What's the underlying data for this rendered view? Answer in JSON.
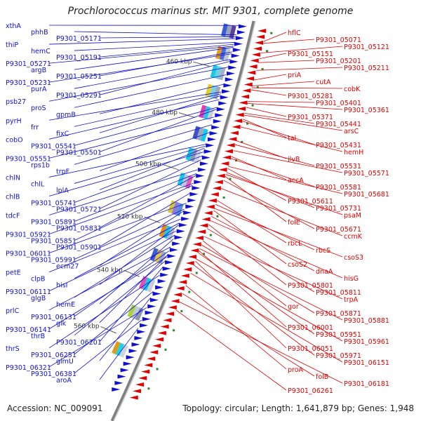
{
  "title": "Prochlorococcus marinus str. MIT 9301, complete genome",
  "accession": "Accession: NC_009091",
  "topology": "Topology: circular; Length: 1,641,879 bp; Genes: 1,948",
  "colors": {
    "forward": "#1010d0",
    "reverse": "#e00000",
    "backbone": "#808080",
    "ticks": "#2a8a2a"
  },
  "ticks": [
    {
      "label": "460 kbp",
      "t": 0.14
    },
    {
      "label": "480 kbp",
      "t": 0.275
    },
    {
      "label": "500 kbp",
      "t": 0.41
    },
    {
      "label": "520 kbp",
      "t": 0.545
    },
    {
      "label": "540 kbp",
      "t": 0.68
    },
    {
      "label": "560 kbp",
      "t": 0.82
    }
  ],
  "left_labels": [
    {
      "text": "xthA",
      "t": 0.02
    },
    {
      "text": "phhB",
      "t": 0.045
    },
    {
      "text": "P9301_05171",
      "t": 0.05
    },
    {
      "text": "thiP",
      "t": 0.055
    },
    {
      "text": "hemC",
      "t": 0.065
    },
    {
      "text": "P9301_05191",
      "t": 0.07
    },
    {
      "text": "P9301_05271",
      "t": 0.075
    },
    {
      "text": "argB",
      "t": 0.078
    },
    {
      "text": "P9301_05251",
      "t": 0.09
    },
    {
      "text": "P9301_05231",
      "t": 0.095
    },
    {
      "text": "purA",
      "t": 0.11
    },
    {
      "text": "P9301_05291",
      "t": 0.115
    },
    {
      "text": "psb27",
      "t": 0.13
    },
    {
      "text": "proS",
      "t": 0.15
    },
    {
      "text": "gpmB",
      "t": 0.175
    },
    {
      "text": "pyrH",
      "t": 0.195
    },
    {
      "text": "frr",
      "t": 0.2
    },
    {
      "text": "fixC",
      "t": 0.205
    },
    {
      "text": "cobO",
      "t": 0.215
    },
    {
      "text": "P9301_05541",
      "t": 0.235
    },
    {
      "text": "P9301_05501",
      "t": 0.24
    },
    {
      "text": "P9301_05551",
      "t": 0.26
    },
    {
      "text": "rps1b",
      "t": 0.28
    },
    {
      "text": "trpF",
      "t": 0.3
    },
    {
      "text": "chlN",
      "t": 0.33
    },
    {
      "text": "chlL",
      "t": 0.335
    },
    {
      "text": "lplA",
      "t": 0.34
    },
    {
      "text": "chlB",
      "t": 0.35
    },
    {
      "text": "P9301_05741",
      "t": 0.36
    },
    {
      "text": "P9301_05721",
      "t": 0.37
    },
    {
      "text": "tdcF",
      "t": 0.395
    },
    {
      "text": "P9301_05891",
      "t": 0.405
    },
    {
      "text": "P9301_05831",
      "t": 0.41
    },
    {
      "text": "P9301_05921",
      "t": 0.43
    },
    {
      "text": "P9301_05851",
      "t": 0.435
    },
    {
      "text": "P9301_05901",
      "t": 0.455
    },
    {
      "text": "P9301_06011",
      "t": 0.48
    },
    {
      "text": "P9301_05991",
      "t": 0.495
    },
    {
      "text": "ecm27",
      "t": 0.5
    },
    {
      "text": "petE",
      "t": 0.52
    },
    {
      "text": "clpB",
      "t": 0.53
    },
    {
      "text": "hisI",
      "t": 0.535
    },
    {
      "text": "P9301_06111",
      "t": 0.55
    },
    {
      "text": "glgB",
      "t": 0.56
    },
    {
      "text": "hemE",
      "t": 0.57
    },
    {
      "text": "prlC",
      "t": 0.59
    },
    {
      "text": "P9301_06131",
      "t": 0.6
    },
    {
      "text": "glk",
      "t": 0.61
    },
    {
      "text": "P9301_06141",
      "t": 0.615
    },
    {
      "text": "thrB",
      "t": 0.625
    },
    {
      "text": "P9301_06201",
      "t": 0.64
    },
    {
      "text": "thrS",
      "t": 0.66
    },
    {
      "text": "P9301_06251",
      "t": 0.7
    },
    {
      "text": "glmU",
      "t": 0.715
    },
    {
      "text": "P9301_06321",
      "t": 0.74
    },
    {
      "text": "P9301_06381",
      "t": 0.77
    },
    {
      "text": "aroA",
      "t": 0.79
    }
  ],
  "right_labels": [
    {
      "text": "hflC",
      "t": 0.045
    },
    {
      "text": "P9301_05071",
      "t": 0.05
    },
    {
      "text": "P9301_05121",
      "t": 0.075
    },
    {
      "text": "P9301_05151",
      "t": 0.09
    },
    {
      "text": "P9301_05201",
      "t": 0.1
    },
    {
      "text": "P9301_05211",
      "t": 0.12
    },
    {
      "text": "priA",
      "t": 0.145
    },
    {
      "text": "cutA",
      "t": 0.16
    },
    {
      "text": "cobK",
      "t": 0.165
    },
    {
      "text": "P9301_05281",
      "t": 0.17
    },
    {
      "text": "P9301_05401",
      "t": 0.2
    },
    {
      "text": "P9301_05361",
      "t": 0.205
    },
    {
      "text": "P9301_05371",
      "t": 0.215
    },
    {
      "text": "P9301_05441",
      "t": 0.23
    },
    {
      "text": "arsC",
      "t": 0.235
    },
    {
      "text": "tal",
      "t": 0.245
    },
    {
      "text": "P9301_05431",
      "t": 0.25
    },
    {
      "text": "hemH",
      "t": 0.265
    },
    {
      "text": "ilvB",
      "t": 0.3
    },
    {
      "text": "P9301_05531",
      "t": 0.31
    },
    {
      "text": "P9301_05571",
      "t": 0.325
    },
    {
      "text": "accA",
      "t": 0.34
    },
    {
      "text": "P9301_05581",
      "t": 0.345
    },
    {
      "text": "P9301_05681",
      "t": 0.365
    },
    {
      "text": "P9301_05611",
      "t": 0.37
    },
    {
      "text": "P9301_05731",
      "t": 0.38
    },
    {
      "text": "psaM",
      "t": 0.385
    },
    {
      "text": "folE",
      "t": 0.39
    },
    {
      "text": "P9301_05671",
      "t": 0.4
    },
    {
      "text": "ccmK",
      "t": 0.42
    },
    {
      "text": "rbcL",
      "t": 0.45
    },
    {
      "text": "rbcS",
      "t": 0.46
    },
    {
      "text": "csoS3",
      "t": 0.47
    },
    {
      "text": "csoS2",
      "t": 0.475
    },
    {
      "text": "dnaA",
      "t": 0.49
    },
    {
      "text": "hisG",
      "t": 0.5
    },
    {
      "text": "P9301_05801",
      "t": 0.51
    },
    {
      "text": "P9301_05811",
      "t": 0.52
    },
    {
      "text": "trpA",
      "t": 0.54
    },
    {
      "text": "gor",
      "t": 0.55
    },
    {
      "text": "P9301_05871",
      "t": 0.56
    },
    {
      "text": "P9301_05881",
      "t": 0.57
    },
    {
      "text": "P9301_06001",
      "t": 0.575
    },
    {
      "text": "P9301_05951",
      "t": 0.58
    },
    {
      "text": "P9301_05961",
      "t": 0.595
    },
    {
      "text": "P9301_06051",
      "t": 0.6
    },
    {
      "text": "P9301_05971",
      "t": 0.61
    },
    {
      "text": "P9301_06151",
      "t": 0.63
    },
    {
      "text": "proA",
      "t": 0.66
    },
    {
      "text": "folB",
      "t": 0.68
    },
    {
      "text": "P9301_06181",
      "t": 0.7
    },
    {
      "text": "P9301_06261",
      "t": 0.72
    }
  ],
  "blocks": [
    {
      "t": 0.04,
      "colors": [
        "#3b5bd9",
        "#9aa3b5",
        "#5a3fa0"
      ]
    },
    {
      "t": 0.1,
      "colors": [
        "#f39c12",
        "#4b6fd9",
        "#c0c6d6"
      ]
    },
    {
      "t": 0.15,
      "colors": [
        "#18c9e8",
        "#6fd0e0",
        "#a8b2c6"
      ]
    },
    {
      "t": 0.2,
      "colors": [
        "#e2cf2a",
        "#7bd3e3",
        "#9ea8be"
      ]
    },
    {
      "t": 0.255,
      "colors": [
        "#e33bb1",
        "#2fc2e6",
        "#c9ccd5"
      ]
    },
    {
      "t": 0.31,
      "colors": [
        "#3e53c4",
        "#a0a8bb",
        "#18c9e8"
      ]
    },
    {
      "t": 0.365,
      "colors": [
        "#0fd0e0",
        "#8f9ab2",
        "#d2d6e0"
      ]
    },
    {
      "t": 0.43,
      "colors": [
        "#15c7e8",
        "#bfc7d8",
        "#e45fb8"
      ]
    },
    {
      "t": 0.5,
      "colors": [
        "#d9c43a",
        "#8b7de0",
        "#5b8ed9"
      ]
    },
    {
      "t": 0.56,
      "colors": [
        "#e88a1a",
        "#18c9e8",
        "#b7bdca"
      ]
    },
    {
      "t": 0.62,
      "colors": [
        "#3c5dd3",
        "#e3c34a",
        "#a1a9bd"
      ]
    },
    {
      "t": 0.69,
      "colors": [
        "#e24fb3",
        "#15c9e6",
        "#c8ccd6"
      ]
    },
    {
      "t": 0.76,
      "colors": [
        "#a8d33a",
        "#c1c8d6",
        "#8e98ae"
      ]
    },
    {
      "t": 0.85,
      "colors": [
        "#e29a1d",
        "#1fd3e0",
        "#cdd3df"
      ]
    }
  ]
}
